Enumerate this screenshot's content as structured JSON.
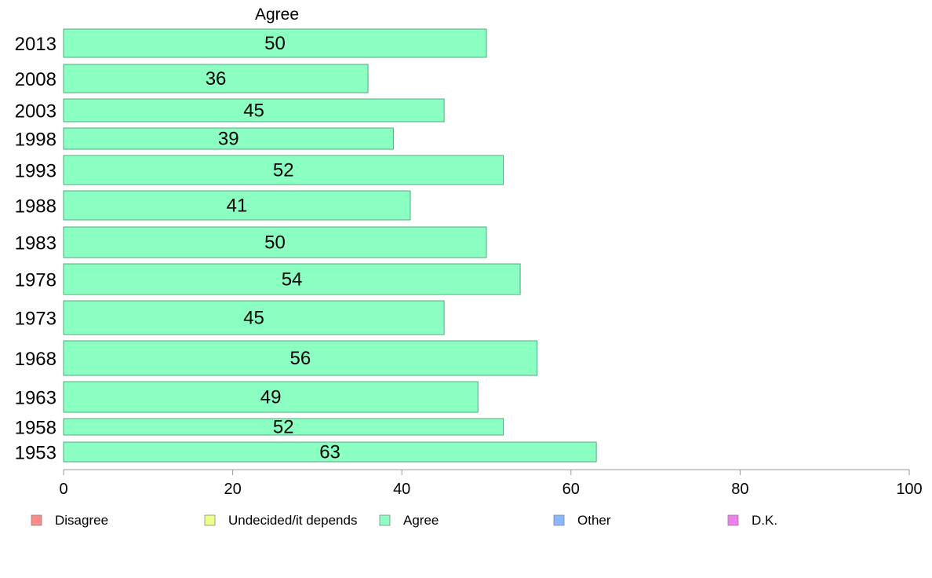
{
  "chart_data": {
    "type": "bar",
    "orientation": "horizontal",
    "column_title": "Agree",
    "categories": [
      "2013",
      "2008",
      "2003",
      "1998",
      "1993",
      "1988",
      "1983",
      "1978",
      "1973",
      "1968",
      "1963",
      "1958",
      "1953"
    ],
    "values": [
      50,
      36,
      45,
      39,
      52,
      41,
      50,
      54,
      45,
      56,
      49,
      52,
      63
    ],
    "xlim": [
      0,
      100
    ],
    "xticks": [
      0,
      20,
      40,
      60,
      80,
      100
    ],
    "grid": false,
    "legend_position": "bottom",
    "legend": [
      {
        "label": "Disagree",
        "color": "#ff8a8a"
      },
      {
        "label": "Undecided/it depends",
        "color": "#eeff8a"
      },
      {
        "label": "Agree",
        "color": "#8affc1"
      },
      {
        "label": "Other",
        "color": "#8ab8ff"
      },
      {
        "label": "D.K.",
        "color": "#ee80ee"
      }
    ],
    "bar_color": "#8affc1"
  }
}
